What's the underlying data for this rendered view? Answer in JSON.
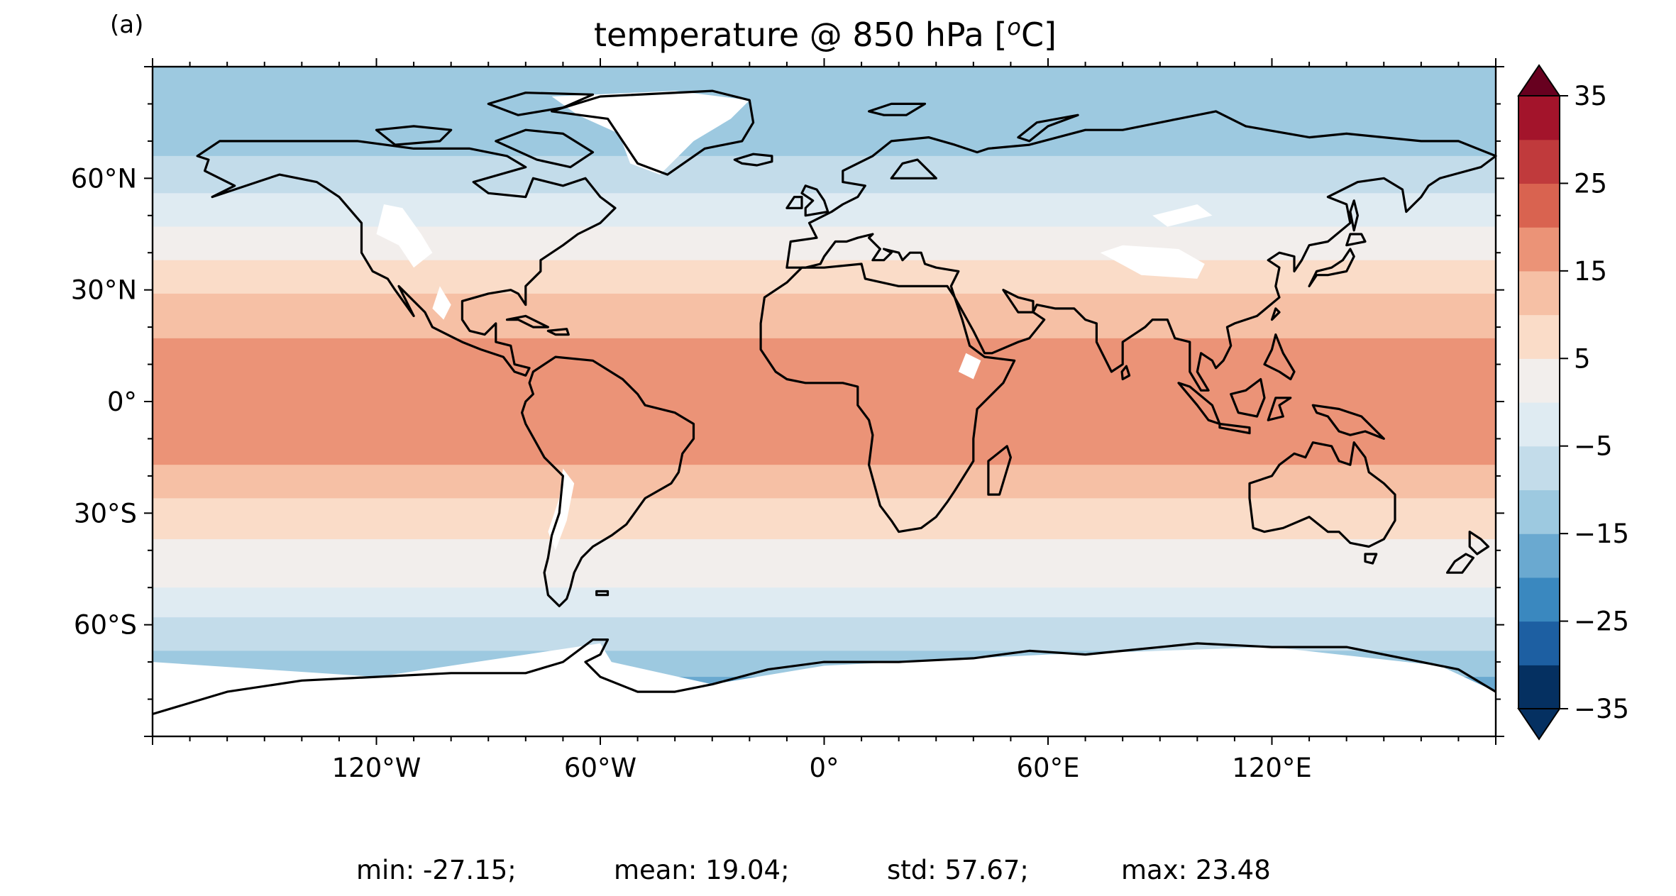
{
  "panel_label": "(a)",
  "title": "temperature @ 850 hPa [°C]",
  "title_parts": {
    "pre": "temperature @ 850 hPa [",
    "sup": "o",
    "post": "C]"
  },
  "map": {
    "projection": "PlateCarree",
    "lon_range": [
      -180,
      180
    ],
    "lat_range": [
      -90,
      90
    ],
    "coastlines": true,
    "background": "#ffffff",
    "xticks": [
      {
        "lon": -120,
        "label": "120°W"
      },
      {
        "lon": -60,
        "label": "60°W"
      },
      {
        "lon": 0,
        "label": "0°"
      },
      {
        "lon": 60,
        "label": "60°E"
      },
      {
        "lon": 120,
        "label": "120°E"
      }
    ],
    "yticks": [
      {
        "lat": 60,
        "label": "60°N"
      },
      {
        "lat": 30,
        "label": "30°N"
      },
      {
        "lat": 0,
        "label": "0°"
      },
      {
        "lat": -30,
        "label": "30°S"
      },
      {
        "lat": -60,
        "label": "60°S"
      }
    ],
    "lat_bands_celsius": [
      {
        "lat_from": 90,
        "lat_to": 84,
        "value": -12
      },
      {
        "lat_from": 84,
        "lat_to": 66,
        "value": -12
      },
      {
        "lat_from": 66,
        "lat_to": 56,
        "value": -7
      },
      {
        "lat_from": 56,
        "lat_to": 47,
        "value": -2
      },
      {
        "lat_from": 47,
        "lat_to": 38,
        "value": 3
      },
      {
        "lat_from": 38,
        "lat_to": 29,
        "value": 8
      },
      {
        "lat_from": 29,
        "lat_to": 17,
        "value": 13
      },
      {
        "lat_from": 17,
        "lat_to": -17,
        "value": 18
      },
      {
        "lat_from": -17,
        "lat_to": -26,
        "value": 13
      },
      {
        "lat_from": -26,
        "lat_to": -37,
        "value": 8
      },
      {
        "lat_from": -37,
        "lat_to": -50,
        "value": 3
      },
      {
        "lat_from": -50,
        "lat_to": -58,
        "value": -2
      },
      {
        "lat_from": -58,
        "lat_to": -67,
        "value": -7
      },
      {
        "lat_from": -67,
        "lat_to": -74,
        "value": -12
      },
      {
        "lat_from": -74,
        "lat_to": -90,
        "value": -17
      }
    ]
  },
  "colorbar": {
    "cmap": "RdBu_r",
    "extend": "both",
    "levels": [
      -35,
      -30,
      -25,
      -20,
      -15,
      -10,
      -5,
      0,
      5,
      10,
      15,
      20,
      25,
      30,
      35
    ],
    "tick_values": [
      35,
      25,
      15,
      5,
      -5,
      -15,
      -25,
      -35
    ],
    "tick_labels": [
      "35",
      "25",
      "15",
      "5",
      "−5",
      "−15",
      "−25",
      "−35"
    ],
    "colors": [
      "#053061",
      "#1d5fa2",
      "#3a88bf",
      "#6aa9d0",
      "#9dc9e0",
      "#c3dcea",
      "#dfebf2",
      "#f2eeec",
      "#fadcc8",
      "#f6c0a5",
      "#eb9377",
      "#d96350",
      "#c03a3c",
      "#a3142b",
      "#67001f"
    ]
  },
  "stats": {
    "min": "min: -27.15;",
    "mean": "mean: 19.04;",
    "std": "std: 57.67;",
    "max": "max: 23.48"
  }
}
